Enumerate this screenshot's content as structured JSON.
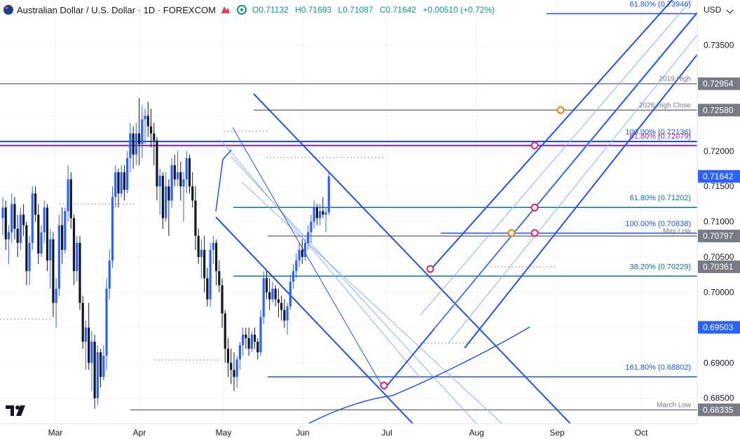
{
  "header": {
    "symbol_title": "Australian Dollar / U.S. Dollar · 1D · FOREXCOM",
    "open": "O0.71132",
    "high": "H0.71693",
    "low": "L0.71087",
    "close": "C0.71642",
    "change": "+0.00510 (+0.72%)"
  },
  "currency": "USD",
  "colors": {
    "up": "#2962ff",
    "down": "#131722",
    "pitchfork": "#1e53e5",
    "fib_line": "#0b6e99",
    "ref_line": "#787b86",
    "pivot_purple": "#9c27b0",
    "pivot_blue": "#2962ff",
    "marker_red": "#e91e63",
    "marker_orange": "#f57c00"
  },
  "xaxis": {
    "labels": [
      "Mar",
      "Apr",
      "May",
      "Jun",
      "Jul",
      "Aug",
      "Sep",
      "Oct"
    ]
  },
  "chart_data": {
    "type": "candlestick",
    "title": "Australian Dollar / U.S. Dollar · 1D · FOREXCOM",
    "ylim": [
      0.6814,
      0.7414
    ],
    "y_ticks": [
      0.735,
      0.73,
      0.725,
      0.72,
      0.715,
      0.71,
      0.705,
      0.7,
      0.695,
      0.69,
      0.685
    ],
    "y_tick_labels": [
      "0.73500",
      "",
      "",
      "0.72000",
      "0.71500",
      "0.71000",
      "0.70500",
      "0.70000",
      "",
      "0.69000",
      "0.68500"
    ],
    "price_tags": [
      {
        "label": "0.72954",
        "value": 0.72954,
        "color": "#787b86"
      },
      {
        "label": "0.72580",
        "value": 0.7258,
        "color": "#787b86"
      },
      {
        "label": "0.71642",
        "value": 0.71642,
        "color": "#2962ff"
      },
      {
        "label": "0.70797",
        "value": 0.70797,
        "color": "#787b86"
      },
      {
        "label": "0.70361",
        "value": 0.70361,
        "color": "#787b86"
      },
      {
        "label": "0.69503",
        "value": 0.69503,
        "color": "#2962ff"
      },
      {
        "label": "0.68335",
        "value": 0.68335,
        "color": "#787b86"
      }
    ],
    "levels": [
      {
        "label": "61.80% (0.73946)",
        "value": 0.73946,
        "color": "#1e53e5"
      },
      {
        "label": "2019 High",
        "value": 0.72954,
        "color": "#787b86"
      },
      {
        "label": "2026 High Close",
        "value": 0.7258,
        "color": "#787b86"
      },
      {
        "label": "100.00% (0.72136)",
        "value": 0.72136,
        "color": "#1e53e5"
      },
      {
        "label": "61.80% (0.72079)",
        "value": 0.72079,
        "color": "#9c27b0"
      },
      {
        "label": "61.80% (0.71202)",
        "value": 0.71202,
        "color": "#0b6e99"
      },
      {
        "label": "100.00% (0.70838)",
        "value": 0.70838,
        "color": "#1e53e5"
      },
      {
        "label": "May Low",
        "value": 0.70797,
        "color": "#787b86"
      },
      {
        "label": "38.20% (0.70229)",
        "value": 0.70229,
        "color": "#0b6e99"
      },
      {
        "label": "161.80% (0.68802)",
        "value": 0.68802,
        "color": "#1e53e5"
      },
      {
        "label": "March Low",
        "value": 0.68335,
        "color": "#787b86"
      }
    ],
    "ohlc": [
      [
        0.7105,
        0.7135,
        0.708,
        0.712
      ],
      [
        0.712,
        0.713,
        0.706,
        0.7075
      ],
      [
        0.7075,
        0.7095,
        0.704,
        0.7085
      ],
      [
        0.7085,
        0.714,
        0.707,
        0.7125
      ],
      [
        0.7125,
        0.7135,
        0.7075,
        0.709
      ],
      [
        0.709,
        0.711,
        0.705,
        0.707
      ],
      [
        0.707,
        0.712,
        0.706,
        0.711
      ],
      [
        0.711,
        0.7125,
        0.708,
        0.7095
      ],
      [
        0.7095,
        0.71,
        0.701,
        0.703
      ],
      [
        0.703,
        0.708,
        0.701,
        0.707
      ],
      [
        0.707,
        0.715,
        0.706,
        0.714
      ],
      [
        0.714,
        0.715,
        0.71,
        0.711
      ],
      [
        0.711,
        0.7125,
        0.704,
        0.7055
      ],
      [
        0.7055,
        0.7095,
        0.705,
        0.7085
      ],
      [
        0.7085,
        0.713,
        0.707,
        0.712
      ],
      [
        0.712,
        0.7125,
        0.703,
        0.7045
      ],
      [
        0.7045,
        0.709,
        0.7005,
        0.7075
      ],
      [
        0.7075,
        0.7085,
        0.6965,
        0.6985
      ],
      [
        0.6985,
        0.702,
        0.695,
        0.7005
      ],
      [
        0.7005,
        0.711,
        0.6995,
        0.7095
      ],
      [
        0.7095,
        0.712,
        0.704,
        0.706
      ],
      [
        0.706,
        0.712,
        0.7055,
        0.7115
      ],
      [
        0.7115,
        0.718,
        0.71,
        0.716
      ],
      [
        0.716,
        0.717,
        0.709,
        0.7105
      ],
      [
        0.7105,
        0.711,
        0.701,
        0.703
      ],
      [
        0.703,
        0.708,
        0.7015,
        0.707
      ],
      [
        0.707,
        0.708,
        0.6975,
        0.6985
      ],
      [
        0.6985,
        0.6995,
        0.692,
        0.693
      ],
      [
        0.693,
        0.696,
        0.689,
        0.695
      ],
      [
        0.695,
        0.6985,
        0.689,
        0.69
      ],
      [
        0.69,
        0.6945,
        0.686,
        0.693
      ],
      [
        0.693,
        0.694,
        0.6835,
        0.685
      ],
      [
        0.685,
        0.6925,
        0.684,
        0.6915
      ],
      [
        0.6915,
        0.692,
        0.6865,
        0.688
      ],
      [
        0.688,
        0.6925,
        0.6875,
        0.691
      ],
      [
        0.691,
        0.702,
        0.689,
        0.7005
      ],
      [
        0.7005,
        0.706,
        0.699,
        0.7045
      ],
      [
        0.7045,
        0.715,
        0.7035,
        0.7135
      ],
      [
        0.7135,
        0.718,
        0.712,
        0.717
      ],
      [
        0.717,
        0.7175,
        0.712,
        0.714
      ],
      [
        0.714,
        0.718,
        0.7135,
        0.717
      ],
      [
        0.717,
        0.718,
        0.713,
        0.7145
      ],
      [
        0.7145,
        0.72,
        0.714,
        0.719
      ],
      [
        0.719,
        0.724,
        0.717,
        0.7225
      ],
      [
        0.7225,
        0.7235,
        0.7175,
        0.7195
      ],
      [
        0.7195,
        0.724,
        0.718,
        0.7225
      ],
      [
        0.7225,
        0.7275,
        0.718,
        0.721
      ],
      [
        0.721,
        0.7265,
        0.719,
        0.7245
      ],
      [
        0.7245,
        0.726,
        0.721,
        0.725
      ],
      [
        0.725,
        0.727,
        0.722,
        0.7235
      ],
      [
        0.7235,
        0.726,
        0.7205,
        0.7225
      ],
      [
        0.7225,
        0.724,
        0.718,
        0.7215
      ],
      [
        0.7215,
        0.722,
        0.713,
        0.715
      ],
      [
        0.715,
        0.7175,
        0.711,
        0.7165
      ],
      [
        0.7165,
        0.717,
        0.709,
        0.7105
      ],
      [
        0.7105,
        0.717,
        0.71,
        0.715
      ],
      [
        0.715,
        0.716,
        0.708,
        0.713
      ],
      [
        0.713,
        0.719,
        0.712,
        0.718
      ],
      [
        0.718,
        0.7195,
        0.715,
        0.716
      ],
      [
        0.716,
        0.72,
        0.715,
        0.717
      ],
      [
        0.717,
        0.7185,
        0.713,
        0.715
      ],
      [
        0.715,
        0.717,
        0.71,
        0.716
      ],
      [
        0.716,
        0.72,
        0.714,
        0.719
      ],
      [
        0.719,
        0.7195,
        0.714,
        0.715
      ],
      [
        0.715,
        0.717,
        0.712,
        0.713
      ],
      [
        0.713,
        0.715,
        0.706,
        0.708
      ],
      [
        0.708,
        0.709,
        0.704,
        0.705
      ],
      [
        0.705,
        0.7075,
        0.702,
        0.706
      ],
      [
        0.706,
        0.708,
        0.7,
        0.702
      ],
      [
        0.702,
        0.7035,
        0.698,
        0.699
      ],
      [
        0.699,
        0.707,
        0.698,
        0.706
      ],
      [
        0.706,
        0.708,
        0.704,
        0.707
      ],
      [
        0.707,
        0.7075,
        0.701,
        0.703
      ],
      [
        0.703,
        0.7045,
        0.7,
        0.701
      ],
      [
        0.701,
        0.702,
        0.695,
        0.697
      ],
      [
        0.697,
        0.6975,
        0.69,
        0.692
      ],
      [
        0.692,
        0.6935,
        0.688,
        0.69
      ],
      [
        0.69,
        0.692,
        0.687,
        0.689
      ],
      [
        0.689,
        0.6915,
        0.686,
        0.688
      ],
      [
        0.688,
        0.691,
        0.6865,
        0.6905
      ],
      [
        0.6905,
        0.693,
        0.689,
        0.6925
      ],
      [
        0.6925,
        0.695,
        0.691,
        0.694
      ],
      [
        0.694,
        0.695,
        0.692,
        0.6935
      ],
      [
        0.6935,
        0.695,
        0.691,
        0.692
      ],
      [
        0.692,
        0.6945,
        0.6915,
        0.694
      ],
      [
        0.694,
        0.695,
        0.692,
        0.693
      ],
      [
        0.693,
        0.6935,
        0.6905,
        0.6915
      ],
      [
        0.6915,
        0.6975,
        0.691,
        0.6965
      ],
      [
        0.6965,
        0.703,
        0.6955,
        0.702
      ],
      [
        0.702,
        0.703,
        0.699,
        0.7
      ],
      [
        0.7,
        0.702,
        0.6975,
        0.699
      ],
      [
        0.699,
        0.7015,
        0.6985,
        0.7005
      ],
      [
        0.7005,
        0.701,
        0.698,
        0.699
      ],
      [
        0.699,
        0.7005,
        0.6965,
        0.6985
      ],
      [
        0.6985,
        0.6995,
        0.696,
        0.6975
      ],
      [
        0.6975,
        0.699,
        0.695,
        0.696
      ],
      [
        0.696,
        0.6985,
        0.694,
        0.698
      ],
      [
        0.698,
        0.7025,
        0.6975,
        0.7015
      ],
      [
        0.7015,
        0.704,
        0.7005,
        0.703
      ],
      [
        0.703,
        0.7055,
        0.702,
        0.7045
      ],
      [
        0.7045,
        0.707,
        0.7035,
        0.706
      ],
      [
        0.706,
        0.7075,
        0.704,
        0.705
      ],
      [
        0.705,
        0.7075,
        0.7045,
        0.707
      ],
      [
        0.707,
        0.7095,
        0.706,
        0.7085
      ],
      [
        0.7085,
        0.711,
        0.707,
        0.71
      ],
      [
        0.71,
        0.713,
        0.709,
        0.712
      ],
      [
        0.712,
        0.7125,
        0.7095,
        0.7105
      ],
      [
        0.7105,
        0.7125,
        0.7095,
        0.7115
      ],
      [
        0.7115,
        0.7135,
        0.7105,
        0.711
      ],
      [
        0.711,
        0.712,
        0.7085,
        0.7113
      ],
      [
        0.7113,
        0.7169,
        0.7109,
        0.7164
      ]
    ]
  }
}
